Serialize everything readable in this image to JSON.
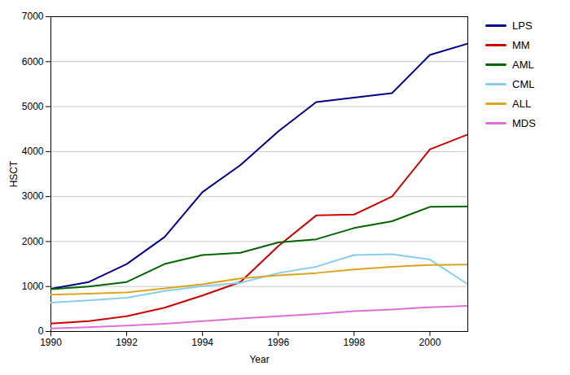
{
  "chart_data": {
    "type": "line",
    "xlabel": "Year",
    "ylabel": "HSCT",
    "x": [
      1990,
      1991,
      1992,
      1993,
      1994,
      1995,
      1996,
      1997,
      1998,
      1999,
      2000,
      2001
    ],
    "series": [
      {
        "name": "LPS",
        "color": "#00008B",
        "values": [
          950,
          1100,
          1500,
          2100,
          3100,
          3700,
          4450,
          5100,
          5200,
          5300,
          6150,
          6400
        ]
      },
      {
        "name": "MM",
        "color": "#CC0000",
        "values": [
          175,
          230,
          340,
          530,
          800,
          1100,
          1900,
          2580,
          2600,
          3000,
          4050,
          4380
        ]
      },
      {
        "name": "AML",
        "color": "#006400",
        "values": [
          940,
          1000,
          1100,
          1500,
          1700,
          1750,
          1980,
          2050,
          2300,
          2450,
          2770,
          2780
        ]
      },
      {
        "name": "CML",
        "color": "#87CEEB",
        "values": [
          640,
          690,
          750,
          900,
          1010,
          1080,
          1300,
          1440,
          1700,
          1720,
          1600,
          1050
        ]
      },
      {
        "name": "ALL",
        "color": "#DAA520",
        "values": [
          820,
          840,
          870,
          960,
          1050,
          1180,
          1250,
          1300,
          1380,
          1440,
          1480,
          1490
        ]
      },
      {
        "name": "MDS",
        "color": "#DA70D6",
        "values": [
          70,
          95,
          130,
          170,
          230,
          290,
          340,
          390,
          450,
          490,
          540,
          570
        ]
      }
    ],
    "xlim": [
      1990,
      2001
    ],
    "xticks": [
      1990,
      1992,
      1994,
      1996,
      1998,
      2000
    ],
    "ylim": [
      0,
      7000
    ],
    "yticks": [
      0,
      1000,
      2000,
      3000,
      4000,
      5000,
      6000,
      7000
    ],
    "grid": true,
    "legend": "right"
  }
}
